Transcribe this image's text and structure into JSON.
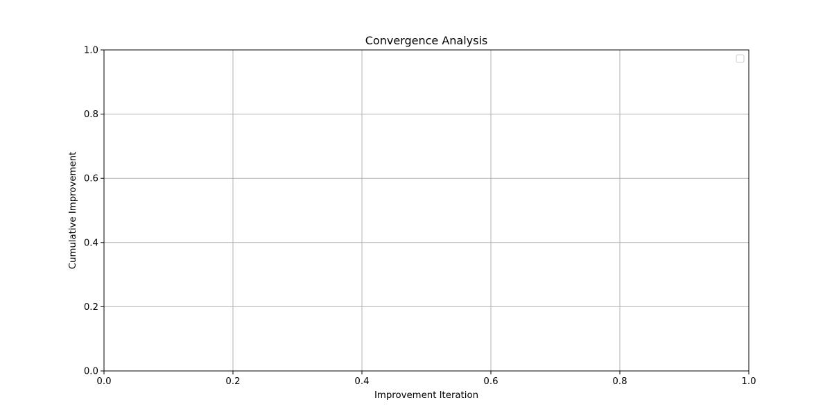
{
  "chart_data": {
    "type": "line",
    "title": "Convergence Analysis",
    "xlabel": "Improvement Iteration",
    "ylabel": "Cumulative Improvement",
    "xlim": [
      0.0,
      1.0
    ],
    "ylim": [
      0.0,
      1.0
    ],
    "x_ticks": [
      "0.0",
      "0.2",
      "0.4",
      "0.6",
      "0.8",
      "1.0"
    ],
    "y_ticks": [
      "0.0",
      "0.2",
      "0.4",
      "0.6",
      "0.8",
      "1.0"
    ],
    "grid": true,
    "legend": "top-right",
    "legend_entries": [],
    "series": [],
    "colors": {
      "grid": "#b0b0b0",
      "axis": "#000000",
      "legend_border": "#cccccc",
      "background": "#ffffff"
    }
  }
}
